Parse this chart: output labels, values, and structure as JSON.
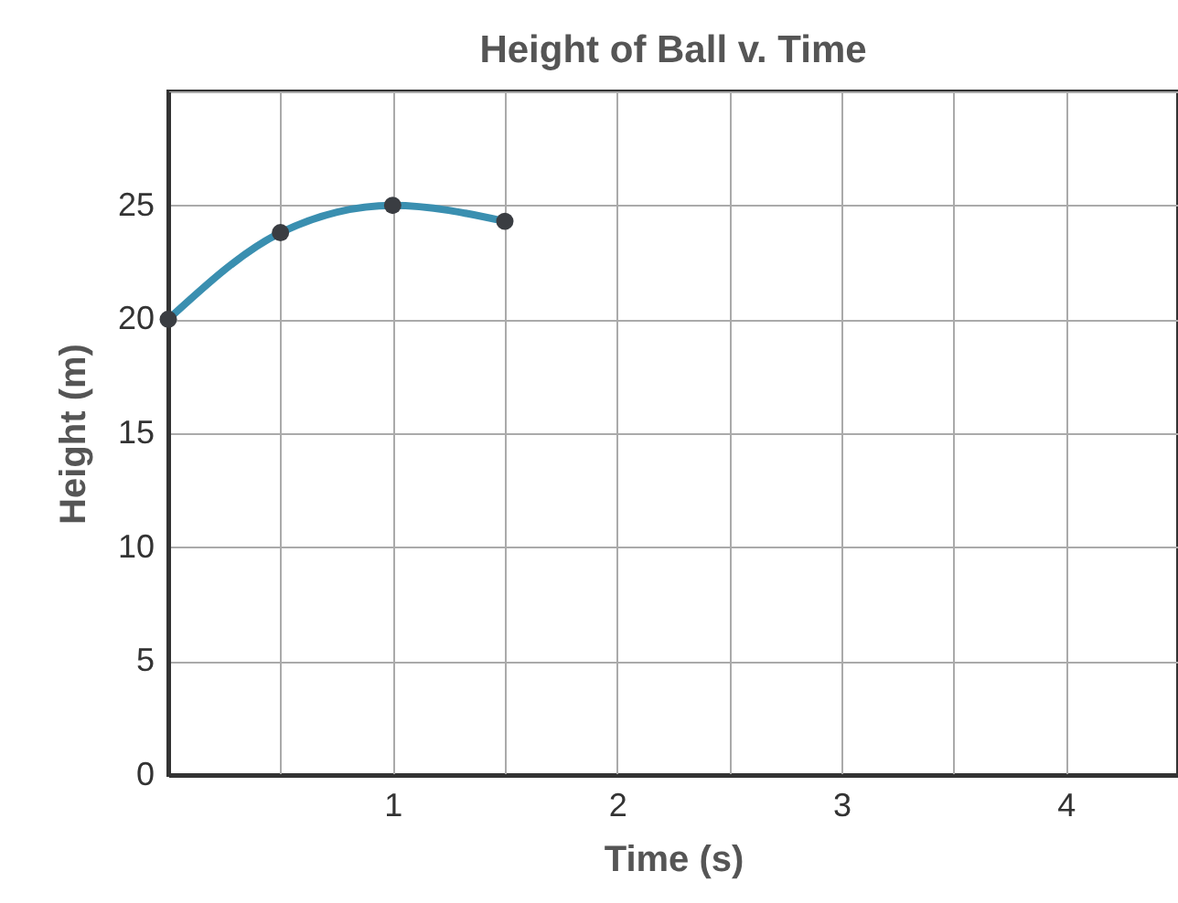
{
  "chart_data": {
    "type": "line",
    "title": "Height of Ball v. Time",
    "xlabel": "Time (s)",
    "ylabel": "Height (m)",
    "x": [
      0,
      0.5,
      1,
      1.5
    ],
    "series": [
      {
        "color": "#3a8fb0",
        "values": [
          20,
          23.8,
          25,
          24.3
        ]
      }
    ],
    "xlim": [
      0,
      4.5
    ],
    "xticks": [
      {
        "value": 0,
        "label": null
      },
      {
        "value": 0.5,
        "label": null
      },
      1,
      {
        "value": 1.5,
        "label": null
      },
      2,
      {
        "value": 2.5,
        "label": null
      },
      3,
      {
        "value": 3.5,
        "label": null
      },
      4,
      {
        "value": 4.5,
        "label": null
      }
    ],
    "ylim": [
      0,
      30
    ],
    "yticks": [
      0,
      5,
      10,
      15,
      20,
      25,
      {
        "value": 30,
        "label": null
      }
    ],
    "grid": true,
    "marker": "circle",
    "line_style": "solid"
  }
}
